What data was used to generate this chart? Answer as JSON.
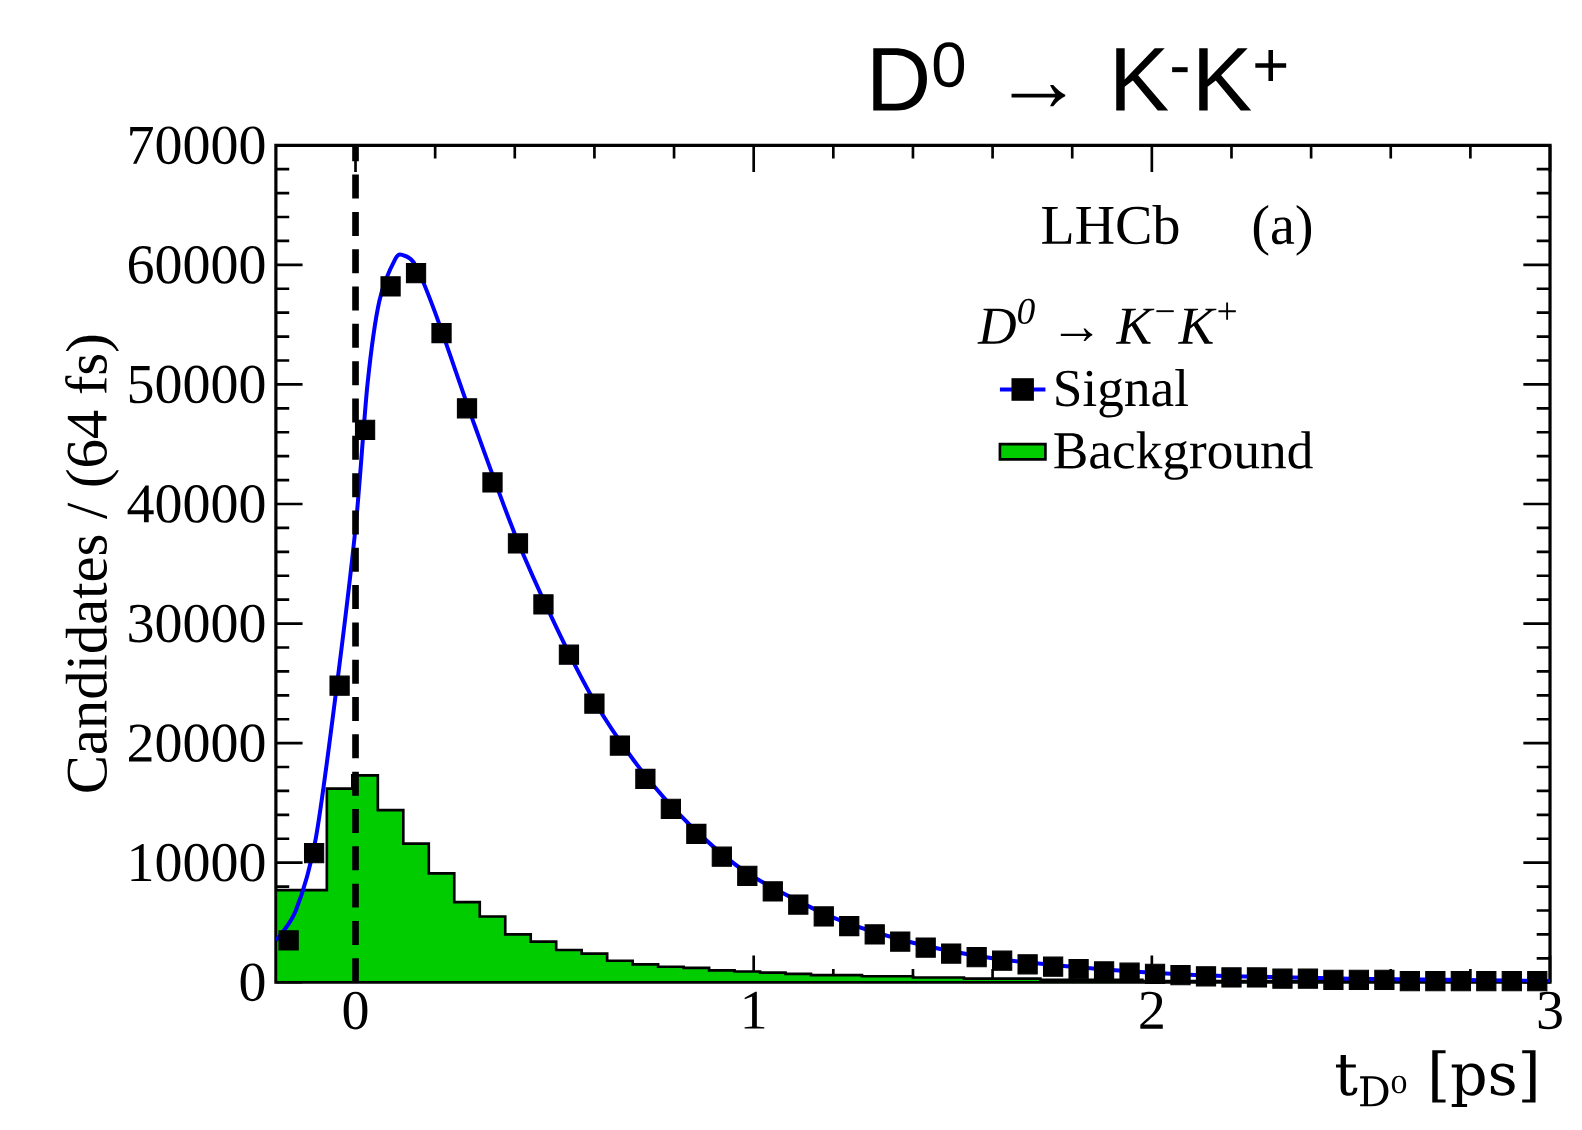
{
  "chart_data": {
    "type": "line",
    "title": "D$^{0}$ → K$^{-}$K$^{+}$",
    "xlabel": "t$_{D⁰}$ [ps]",
    "ylabel": "Candidates / (64 fs)",
    "legend_title": "D$^{0}$ → K$^{−}$K$^{+}$",
    "annotations": [
      "LHCb",
      "(a)"
    ],
    "xlim": [
      -0.2,
      3
    ],
    "ylim": [
      0,
      70000
    ],
    "xticks": [
      0,
      1,
      2,
      3
    ],
    "yticks": [
      0,
      10000,
      20000,
      30000,
      40000,
      50000,
      60000,
      70000
    ],
    "legend": "top right",
    "grid": false,
    "ref_lines": [
      {
        "axis": "x",
        "value": 0,
        "color": "#000000",
        "line_style": "dashed"
      }
    ],
    "series": [
      {
        "name": "Signal",
        "type": "scatter",
        "color": "#000000",
        "marker": "square",
        "x": [
          -0.168,
          -0.104,
          -0.04,
          0.024,
          0.088,
          0.152,
          0.216,
          0.28,
          0.344,
          0.408,
          0.472,
          0.536,
          0.6,
          0.664,
          0.728,
          0.792,
          0.856,
          0.92,
          0.984,
          1.048,
          1.112,
          1.176,
          1.24,
          1.304,
          1.368,
          1.432,
          1.496,
          1.56,
          1.624,
          1.688,
          1.752,
          1.816,
          1.88,
          1.944,
          2.008,
          2.072,
          2.136,
          2.2,
          2.264,
          2.328,
          2.392,
          2.456,
          2.52,
          2.584,
          2.648,
          2.712,
          2.776,
          2.84,
          2.904,
          2.968
        ],
        "values": [
          3500,
          10800,
          24800,
          46200,
          58200,
          59300,
          54300,
          48000,
          41800,
          36700,
          31600,
          27400,
          23300,
          19800,
          17000,
          14500,
          12400,
          10500,
          8900,
          7600,
          6500,
          5500,
          4700,
          4000,
          3400,
          2900,
          2400,
          2100,
          1800,
          1500,
          1300,
          1100,
          900,
          800,
          700,
          600,
          500,
          400,
          400,
          300,
          300,
          200,
          200,
          200,
          100,
          100,
          100,
          100,
          100,
          100
        ]
      },
      {
        "name": "Background",
        "type": "histogram",
        "color": "#00cc00",
        "bins": [
          -0.2,
          -0.136,
          -0.072,
          -0.008,
          0.056,
          0.12,
          0.184,
          0.248,
          0.312,
          0.376,
          0.44,
          0.504,
          0.568,
          0.632,
          0.696,
          0.76,
          0.824,
          0.888,
          0.952,
          1.016,
          1.08,
          1.144,
          1.208,
          1.272,
          1.336,
          1.4,
          1.464,
          1.528,
          1.592,
          1.656,
          1.72,
          1.784,
          1.848,
          1.912,
          1.976,
          2.04,
          2.104,
          2.168,
          2.232,
          2.296,
          2.36,
          2.424,
          2.488,
          2.552,
          2.616,
          2.68,
          2.744,
          2.808,
          2.872,
          2.936,
          3.0
        ],
        "values": [
          7700,
          7700,
          16200,
          17300,
          14400,
          11600,
          9100,
          6700,
          5500,
          4000,
          3400,
          2700,
          2400,
          1800,
          1500,
          1300,
          1200,
          1000,
          900,
          800,
          700,
          600,
          600,
          500,
          500,
          400,
          400,
          300,
          300,
          300,
          200,
          200,
          200,
          200,
          100,
          100,
          100,
          100,
          100,
          100,
          100,
          100,
          100,
          100,
          100,
          100,
          100,
          100,
          100,
          100
        ]
      },
      {
        "color": "#0000ff",
        "x": [
          -0.2,
          -0.15,
          -0.1,
          -0.05,
          0,
          0.03,
          0.06,
          0.1,
          0.12,
          0.15,
          0.2,
          0.3,
          0.4,
          0.5,
          0.6,
          0.7,
          0.8,
          0.9,
          1.0,
          1.2,
          1.4,
          1.6,
          1.8,
          2.0,
          2.2,
          2.5,
          3.0
        ],
        "values": [
          3500,
          6000,
          12000,
          24000,
          38000,
          50000,
          57000,
          60500,
          60800,
          60000,
          56000,
          46500,
          37500,
          30000,
          23500,
          18500,
          14500,
          11300,
          8800,
          5400,
          3300,
          2000,
          1300,
          800,
          500,
          300,
          100
        ]
      }
    ]
  }
}
